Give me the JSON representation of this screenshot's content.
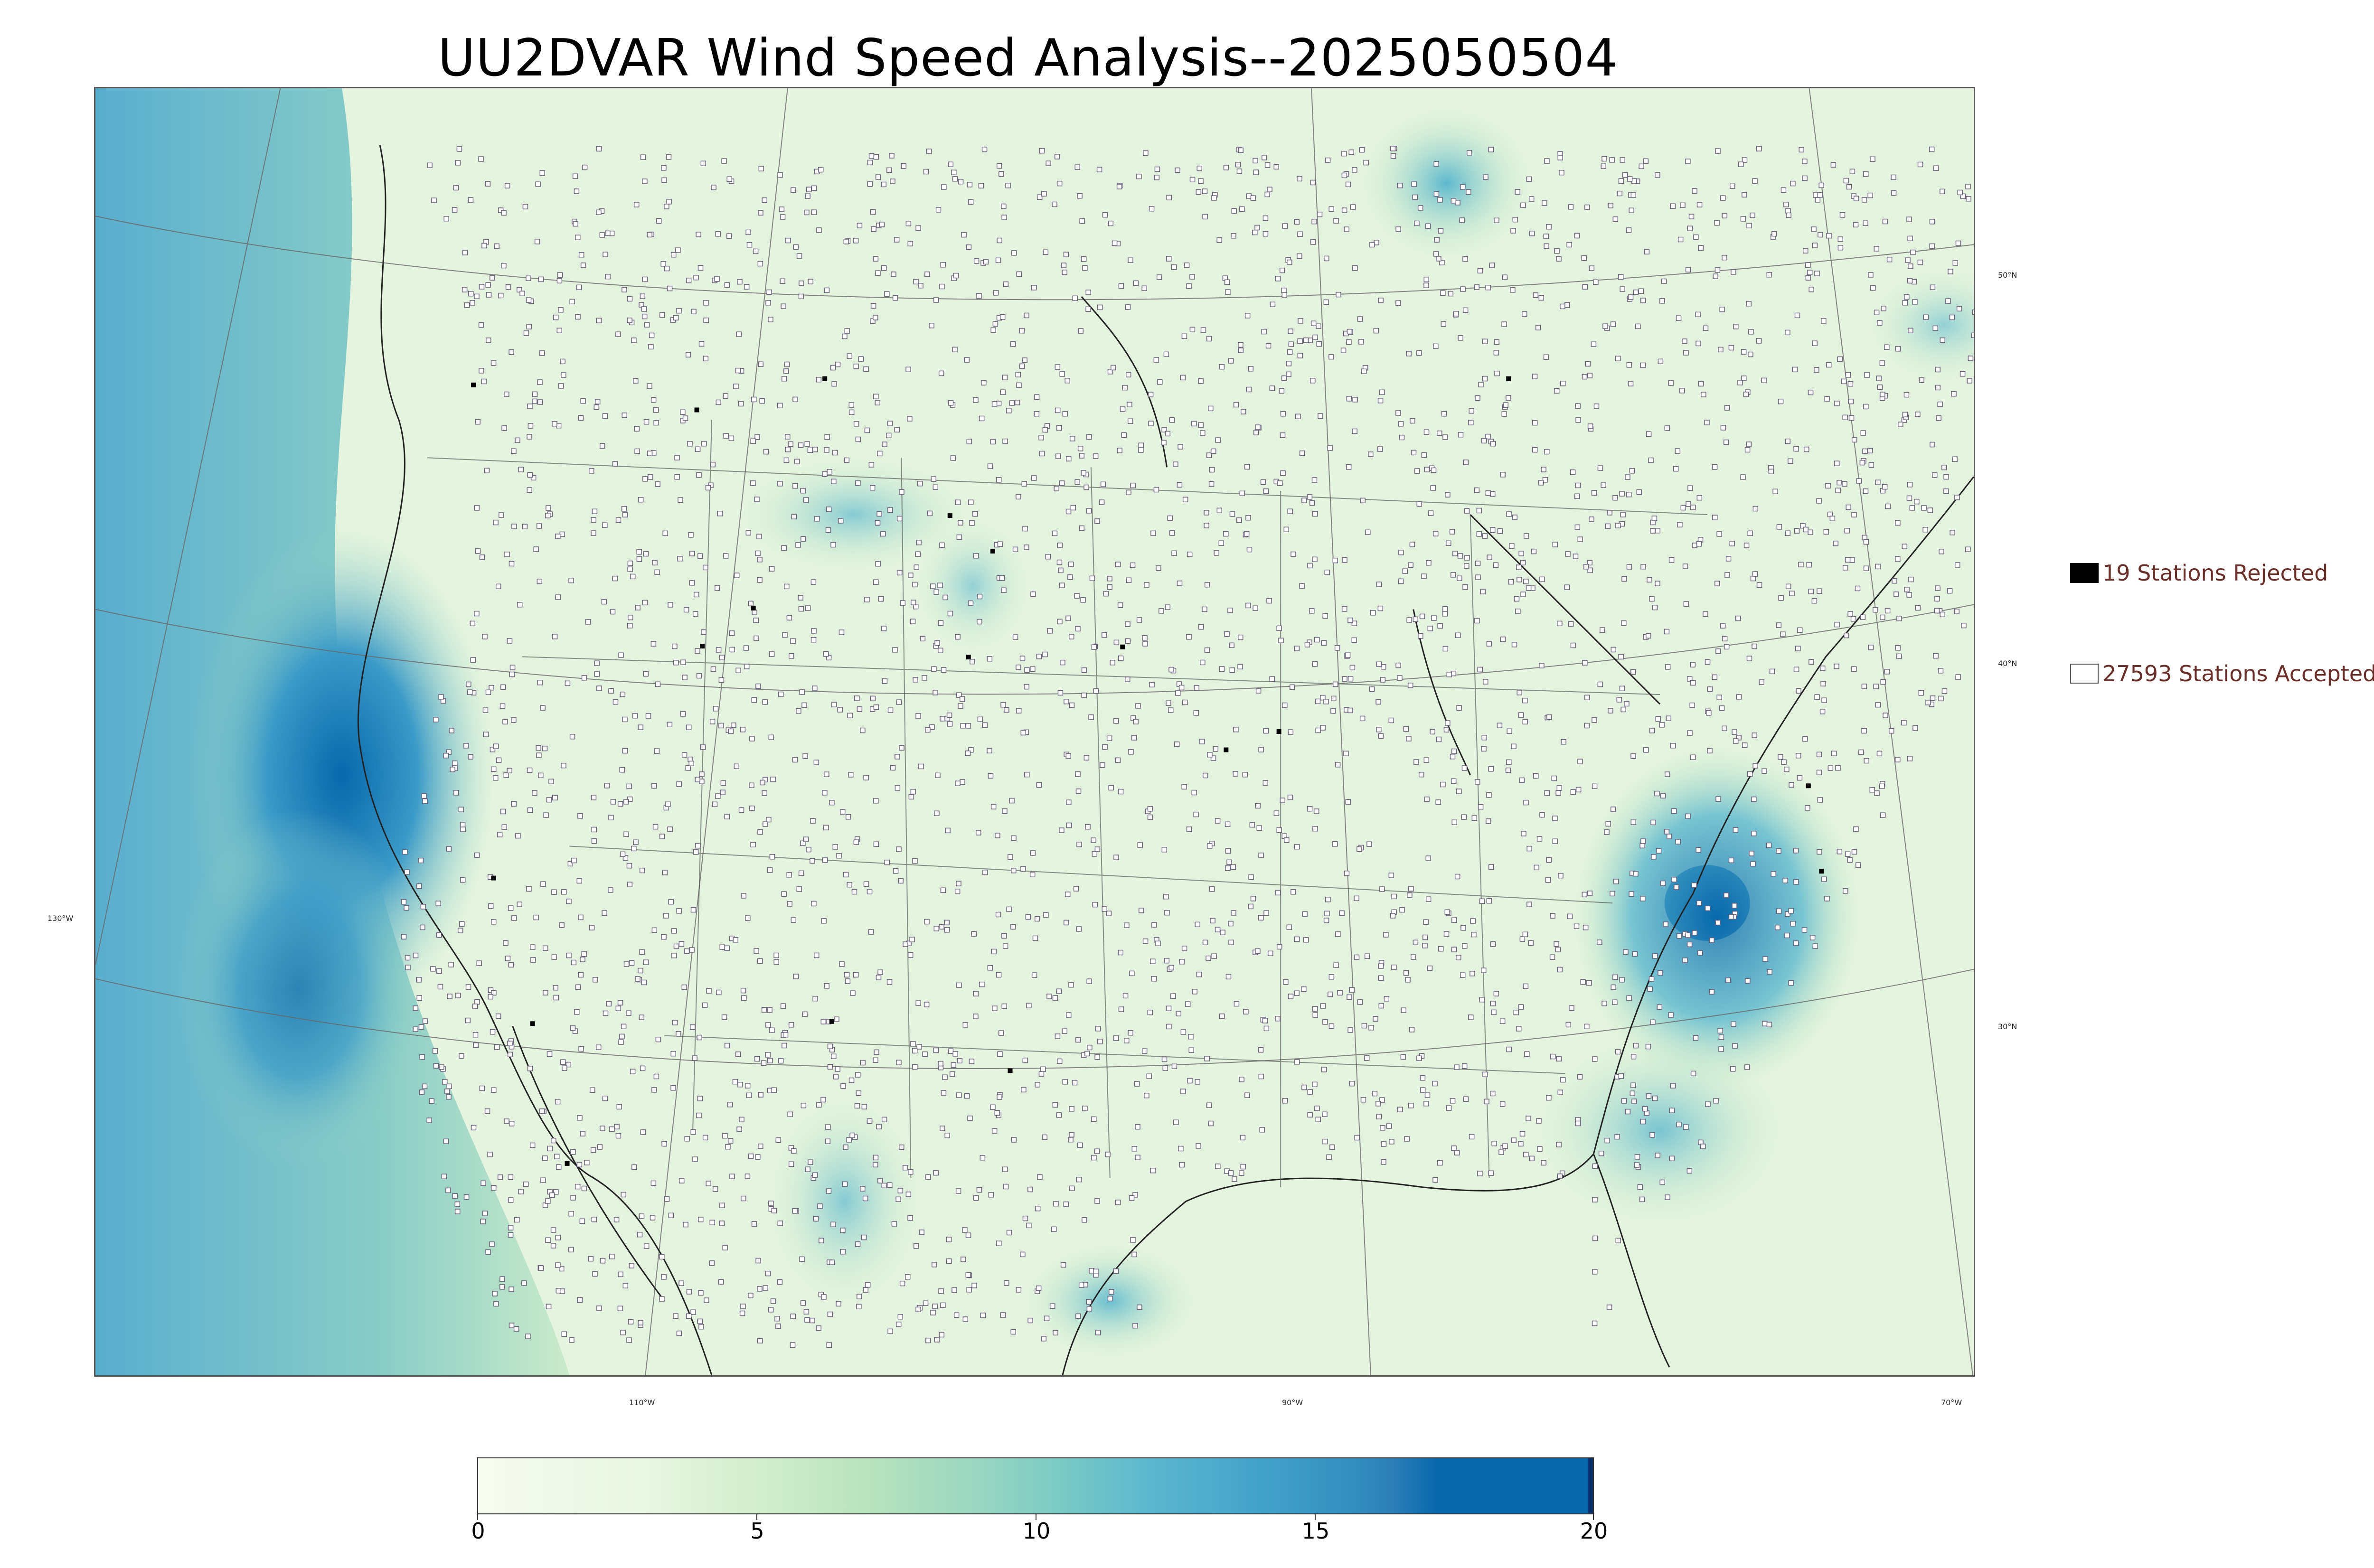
{
  "title": "UU2DVAR Wind Speed Analysis--2025050504",
  "legend": {
    "rejected_label": "19 Stations Rejected",
    "accepted_label": "27593 Stations Accepted"
  },
  "graticule": {
    "lat_labels": [
      "50°N",
      "40°N",
      "30°N"
    ],
    "lon_labels": [
      "130°W",
      "110°W",
      "90°W",
      "70°W"
    ]
  },
  "colorbar": {
    "min": 0,
    "max": 20,
    "tick_labels": [
      "0",
      "5",
      "10",
      "15",
      "20"
    ],
    "colormap": "GnBu"
  },
  "colors": {
    "land_base": "#eef8ea",
    "ocean_strong": "#2c7fb8",
    "ocean_mid": "#7bcbc4",
    "station_accepted_fill": "#ffffff",
    "station_rejected_fill": "#000000",
    "legend_text": "#6b2f2a"
  }
}
